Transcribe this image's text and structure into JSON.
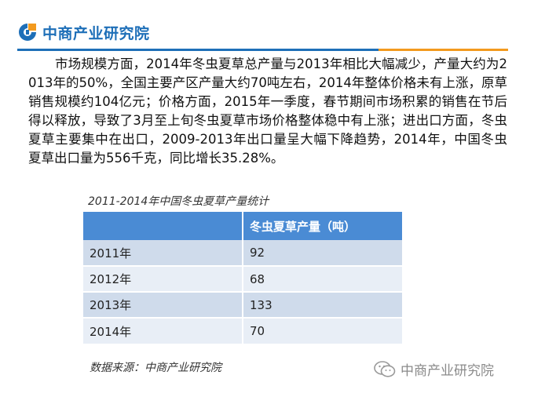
{
  "header": {
    "brand": "中商产业研究院",
    "colors": {
      "primary": "#1e6fb8",
      "accent": "#f39a1e"
    }
  },
  "paragraph": "市场规模方面，2014年冬虫夏草总产量与2013年相比大幅减少，产量大约为2013年的50%，全国主要产区产量大约70吨左右，2014年整体价格未有上涨，原草销售规模约104亿元；价格方面，2015年一季度，春节期间市场积累的销售在节后得以释放，导致了3月至上旬冬虫夏草市场价格整体稳中有上涨；进出口方面，冬虫夏草主要集中在出口，2009-2013年出口量呈大幅下降趋势，2014年，中国冬虫夏草出口量为556千克，同比增长35.28%。",
  "table": {
    "title": "2011-2014年中国冬虫夏草产量统计",
    "header": [
      "",
      "冬虫夏草产量（吨）"
    ],
    "rows": [
      [
        "2011年",
        "92"
      ],
      [
        "2012年",
        "68"
      ],
      [
        "2013年",
        "133"
      ],
      [
        "2014年",
        "70"
      ]
    ],
    "colors": {
      "header": "#4a8bd4",
      "row_dark": "#cfdbeb",
      "row_light": "#e8eef6"
    }
  },
  "source": "数据来源：中商产业研究院",
  "watermark": {
    "text": "中商产业研究院",
    "icon": "wechat-icon"
  }
}
